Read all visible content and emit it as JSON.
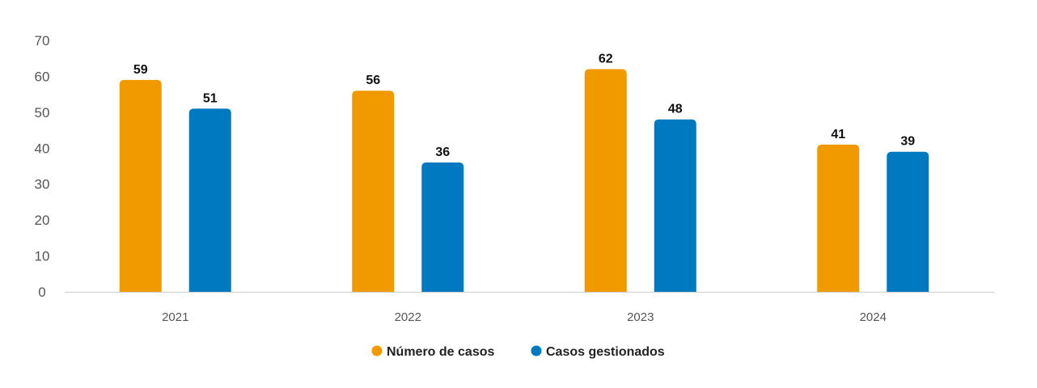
{
  "chart_data": {
    "type": "bar",
    "categories": [
      "2021",
      "2022",
      "2023",
      "2024"
    ],
    "series": [
      {
        "name": "Número de casos",
        "values": [
          59,
          56,
          62,
          41
        ],
        "color": "#F09A00"
      },
      {
        "name": "Casos gestionados",
        "values": [
          51,
          36,
          48,
          39
        ],
        "color": "#0079C1"
      }
    ],
    "ylim": [
      0,
      70
    ],
    "yticks": [
      0,
      10,
      20,
      30,
      40,
      50,
      60,
      70
    ],
    "grid": false,
    "legend": "bottom-center",
    "title": "",
    "xlabel": "",
    "ylabel": ""
  }
}
